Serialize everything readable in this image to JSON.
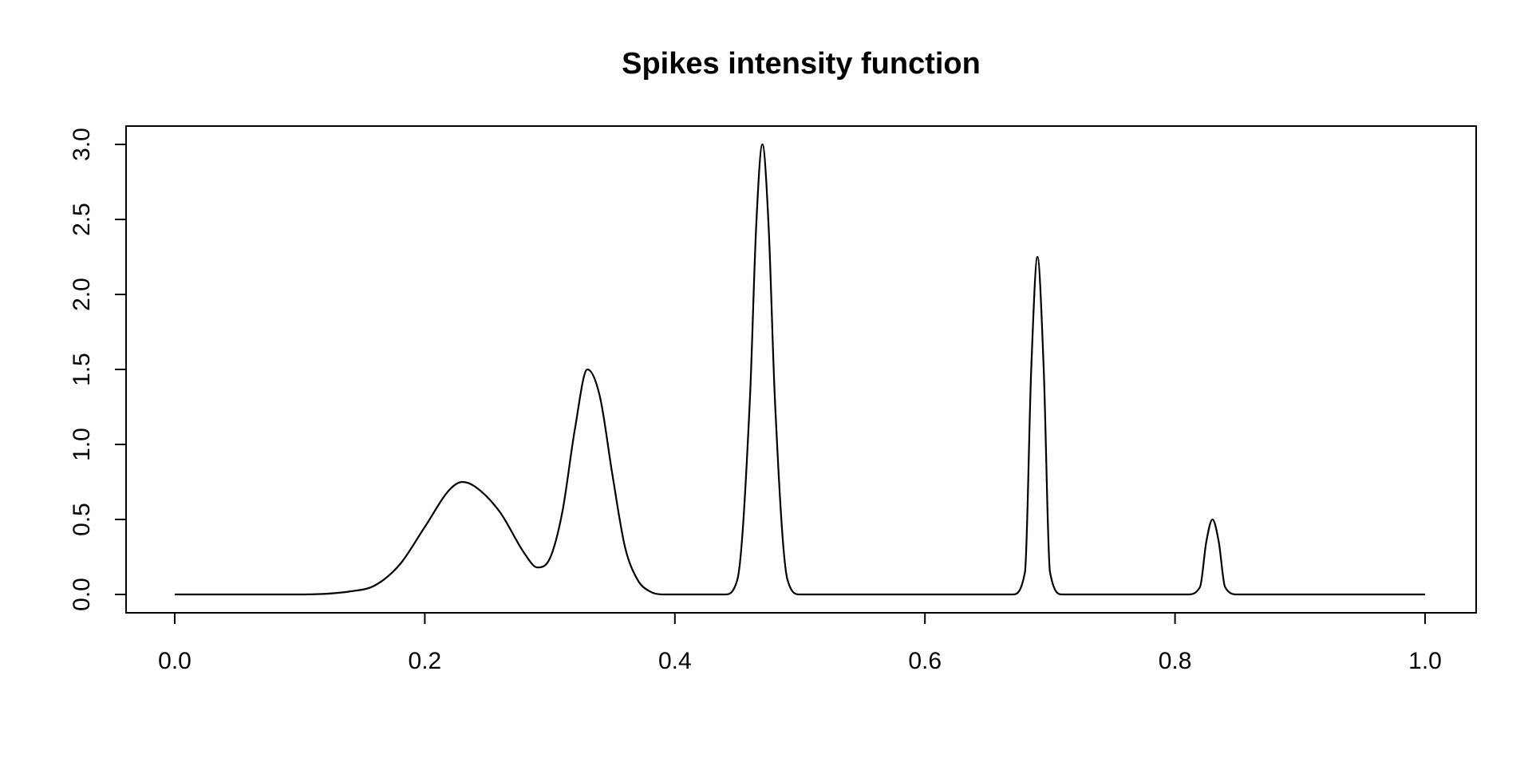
{
  "chart_data": {
    "type": "line",
    "title": "Spikes intensity function",
    "xlabel": "",
    "ylabel": "",
    "xlim": [
      0,
      1
    ],
    "ylim": [
      0,
      3
    ],
    "x_ticks": [
      0.0,
      0.2,
      0.4,
      0.6,
      0.8,
      1.0
    ],
    "x_tick_labels": [
      "0.0",
      "0.2",
      "0.4",
      "0.6",
      "0.8",
      "1.0"
    ],
    "y_ticks": [
      0.0,
      0.5,
      1.0,
      1.5,
      2.0,
      2.5,
      3.0
    ],
    "y_tick_labels": [
      "0.0",
      "0.5",
      "1.0",
      "1.5",
      "2.0",
      "2.5",
      "3.0"
    ],
    "grid": false,
    "legend": "none",
    "line_color": "#000000",
    "series": [
      {
        "x": [
          0.0,
          0.1,
          0.14,
          0.16,
          0.18,
          0.2,
          0.22,
          0.23,
          0.24,
          0.26,
          0.28,
          0.29,
          0.3,
          0.31,
          0.32,
          0.33,
          0.34,
          0.35,
          0.36,
          0.37,
          0.38,
          0.39,
          0.4,
          0.44,
          0.45,
          0.46,
          0.465,
          0.47,
          0.475,
          0.48,
          0.49,
          0.5,
          0.51,
          0.67,
          0.68,
          0.685,
          0.69,
          0.695,
          0.7,
          0.71,
          0.72,
          0.81,
          0.82,
          0.825,
          0.83,
          0.835,
          0.84,
          0.85,
          1.0
        ],
        "y": [
          0.0,
          0.0,
          0.02,
          0.06,
          0.2,
          0.45,
          0.7,
          0.75,
          0.72,
          0.55,
          0.27,
          0.18,
          0.24,
          0.55,
          1.1,
          1.5,
          1.32,
          0.8,
          0.32,
          0.1,
          0.02,
          0.0,
          0.0,
          0.0,
          0.1,
          1.3,
          2.45,
          3.0,
          2.45,
          1.3,
          0.1,
          0.0,
          0.0,
          0.0,
          0.15,
          1.5,
          2.25,
          1.5,
          0.15,
          0.0,
          0.0,
          0.0,
          0.05,
          0.35,
          0.5,
          0.35,
          0.05,
          0.0,
          0.0
        ]
      }
    ]
  }
}
